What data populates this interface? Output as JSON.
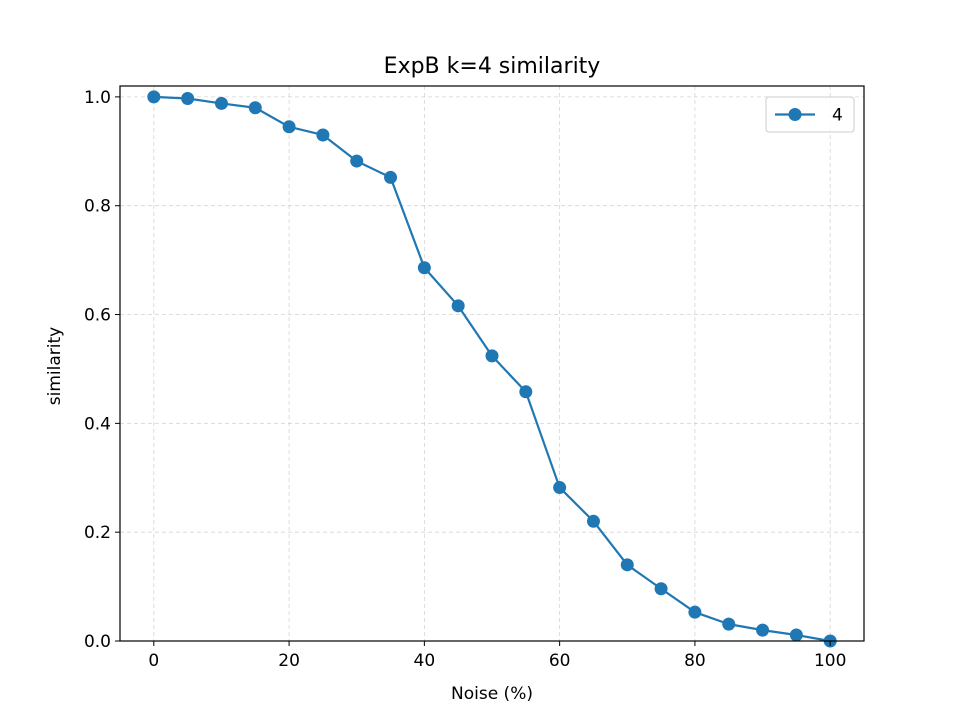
{
  "chart_data": {
    "type": "line",
    "title": "ExpB k=4 similarity",
    "xlabel": "Noise (%)",
    "ylabel": "similarity",
    "xlim": [
      -5,
      105
    ],
    "ylim": [
      0,
      1.02
    ],
    "xticks": [
      0,
      20,
      40,
      60,
      80,
      100
    ],
    "yticks": [
      0.0,
      0.2,
      0.4,
      0.6,
      0.8,
      1.0
    ],
    "grid": true,
    "legend_position": "top-right",
    "series": [
      {
        "name": "4",
        "color": "#1f77b4",
        "marker": "circle",
        "x": [
          0,
          5,
          10,
          15,
          20,
          25,
          30,
          35,
          40,
          45,
          50,
          55,
          60,
          65,
          70,
          75,
          80,
          85,
          90,
          95,
          100
        ],
        "y": [
          1.0,
          0.997,
          0.988,
          0.98,
          0.945,
          0.93,
          0.882,
          0.852,
          0.686,
          0.616,
          0.524,
          0.458,
          0.282,
          0.22,
          0.14,
          0.096,
          0.053,
          0.031,
          0.02,
          0.011,
          0.0
        ]
      }
    ]
  }
}
